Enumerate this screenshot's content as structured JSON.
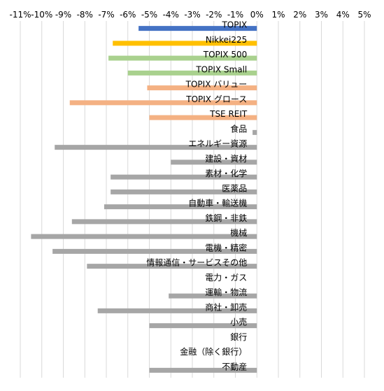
{
  "chart_data": {
    "type": "bar",
    "orientation": "horizontal",
    "title": "",
    "xlabel": "",
    "ylabel": "",
    "xlim": [
      -11,
      5
    ],
    "x_ticks": [
      -11,
      -10,
      -9,
      -8,
      -7,
      -6,
      -5,
      -4,
      -3,
      -2,
      -1,
      0,
      1,
      2,
      3,
      4,
      5
    ],
    "x_tick_labels": [
      "-11%",
      "-10%",
      "-9%",
      "-8%",
      "-7%",
      "-6%",
      "-5%",
      "-4%",
      "-3%",
      "-2%",
      "-1%",
      "0%",
      "1%",
      "2%",
      "3%",
      "4%",
      "5%"
    ],
    "x_axis_position": "top",
    "grid": true,
    "legend": "none",
    "categories": [
      "TOPIX",
      "Nikkei225",
      "TOPIX 500",
      "TOPIX Small",
      "TOPIX バリュー",
      "TOPIX グロース",
      "TSE REIT",
      "食品",
      "エネルギー資源",
      "建設・資材",
      "素材・化学",
      "医薬品",
      "自動車・輸送機",
      "鉄鋼・非鉄",
      "機械",
      "電機・精密",
      "情報通信・サービスその他",
      "電力・ガス",
      "運輸・物流",
      "商社・卸売",
      "小売",
      "銀行",
      "金融（除く銀行）",
      "不動産"
    ],
    "values": [
      -5.5,
      -6.7,
      -6.9,
      -6.0,
      -5.1,
      -8.7,
      -5.0,
      -0.2,
      -9.4,
      -4.0,
      -6.8,
      -6.8,
      -7.1,
      -8.6,
      -10.5,
      -9.5,
      -7.9,
      0.0,
      -4.1,
      -7.4,
      -5.0,
      0.0,
      0.0,
      -5.0
    ],
    "colors": [
      "#4472C4",
      "#FFC000",
      "#A9D18E",
      "#A9D18E",
      "#F4B183",
      "#F4B183",
      "#F4B183",
      "#A6A6A6",
      "#A6A6A6",
      "#A6A6A6",
      "#A6A6A6",
      "#A6A6A6",
      "#A6A6A6",
      "#A6A6A6",
      "#A6A6A6",
      "#A6A6A6",
      "#A6A6A6",
      "#A6A6A6",
      "#A6A6A6",
      "#A6A6A6",
      "#A6A6A6",
      "#A6A6A6",
      "#A6A6A6",
      "#A6A6A6"
    ],
    "gridline_color": "#D9D9D9",
    "text_color": "#000000"
  }
}
